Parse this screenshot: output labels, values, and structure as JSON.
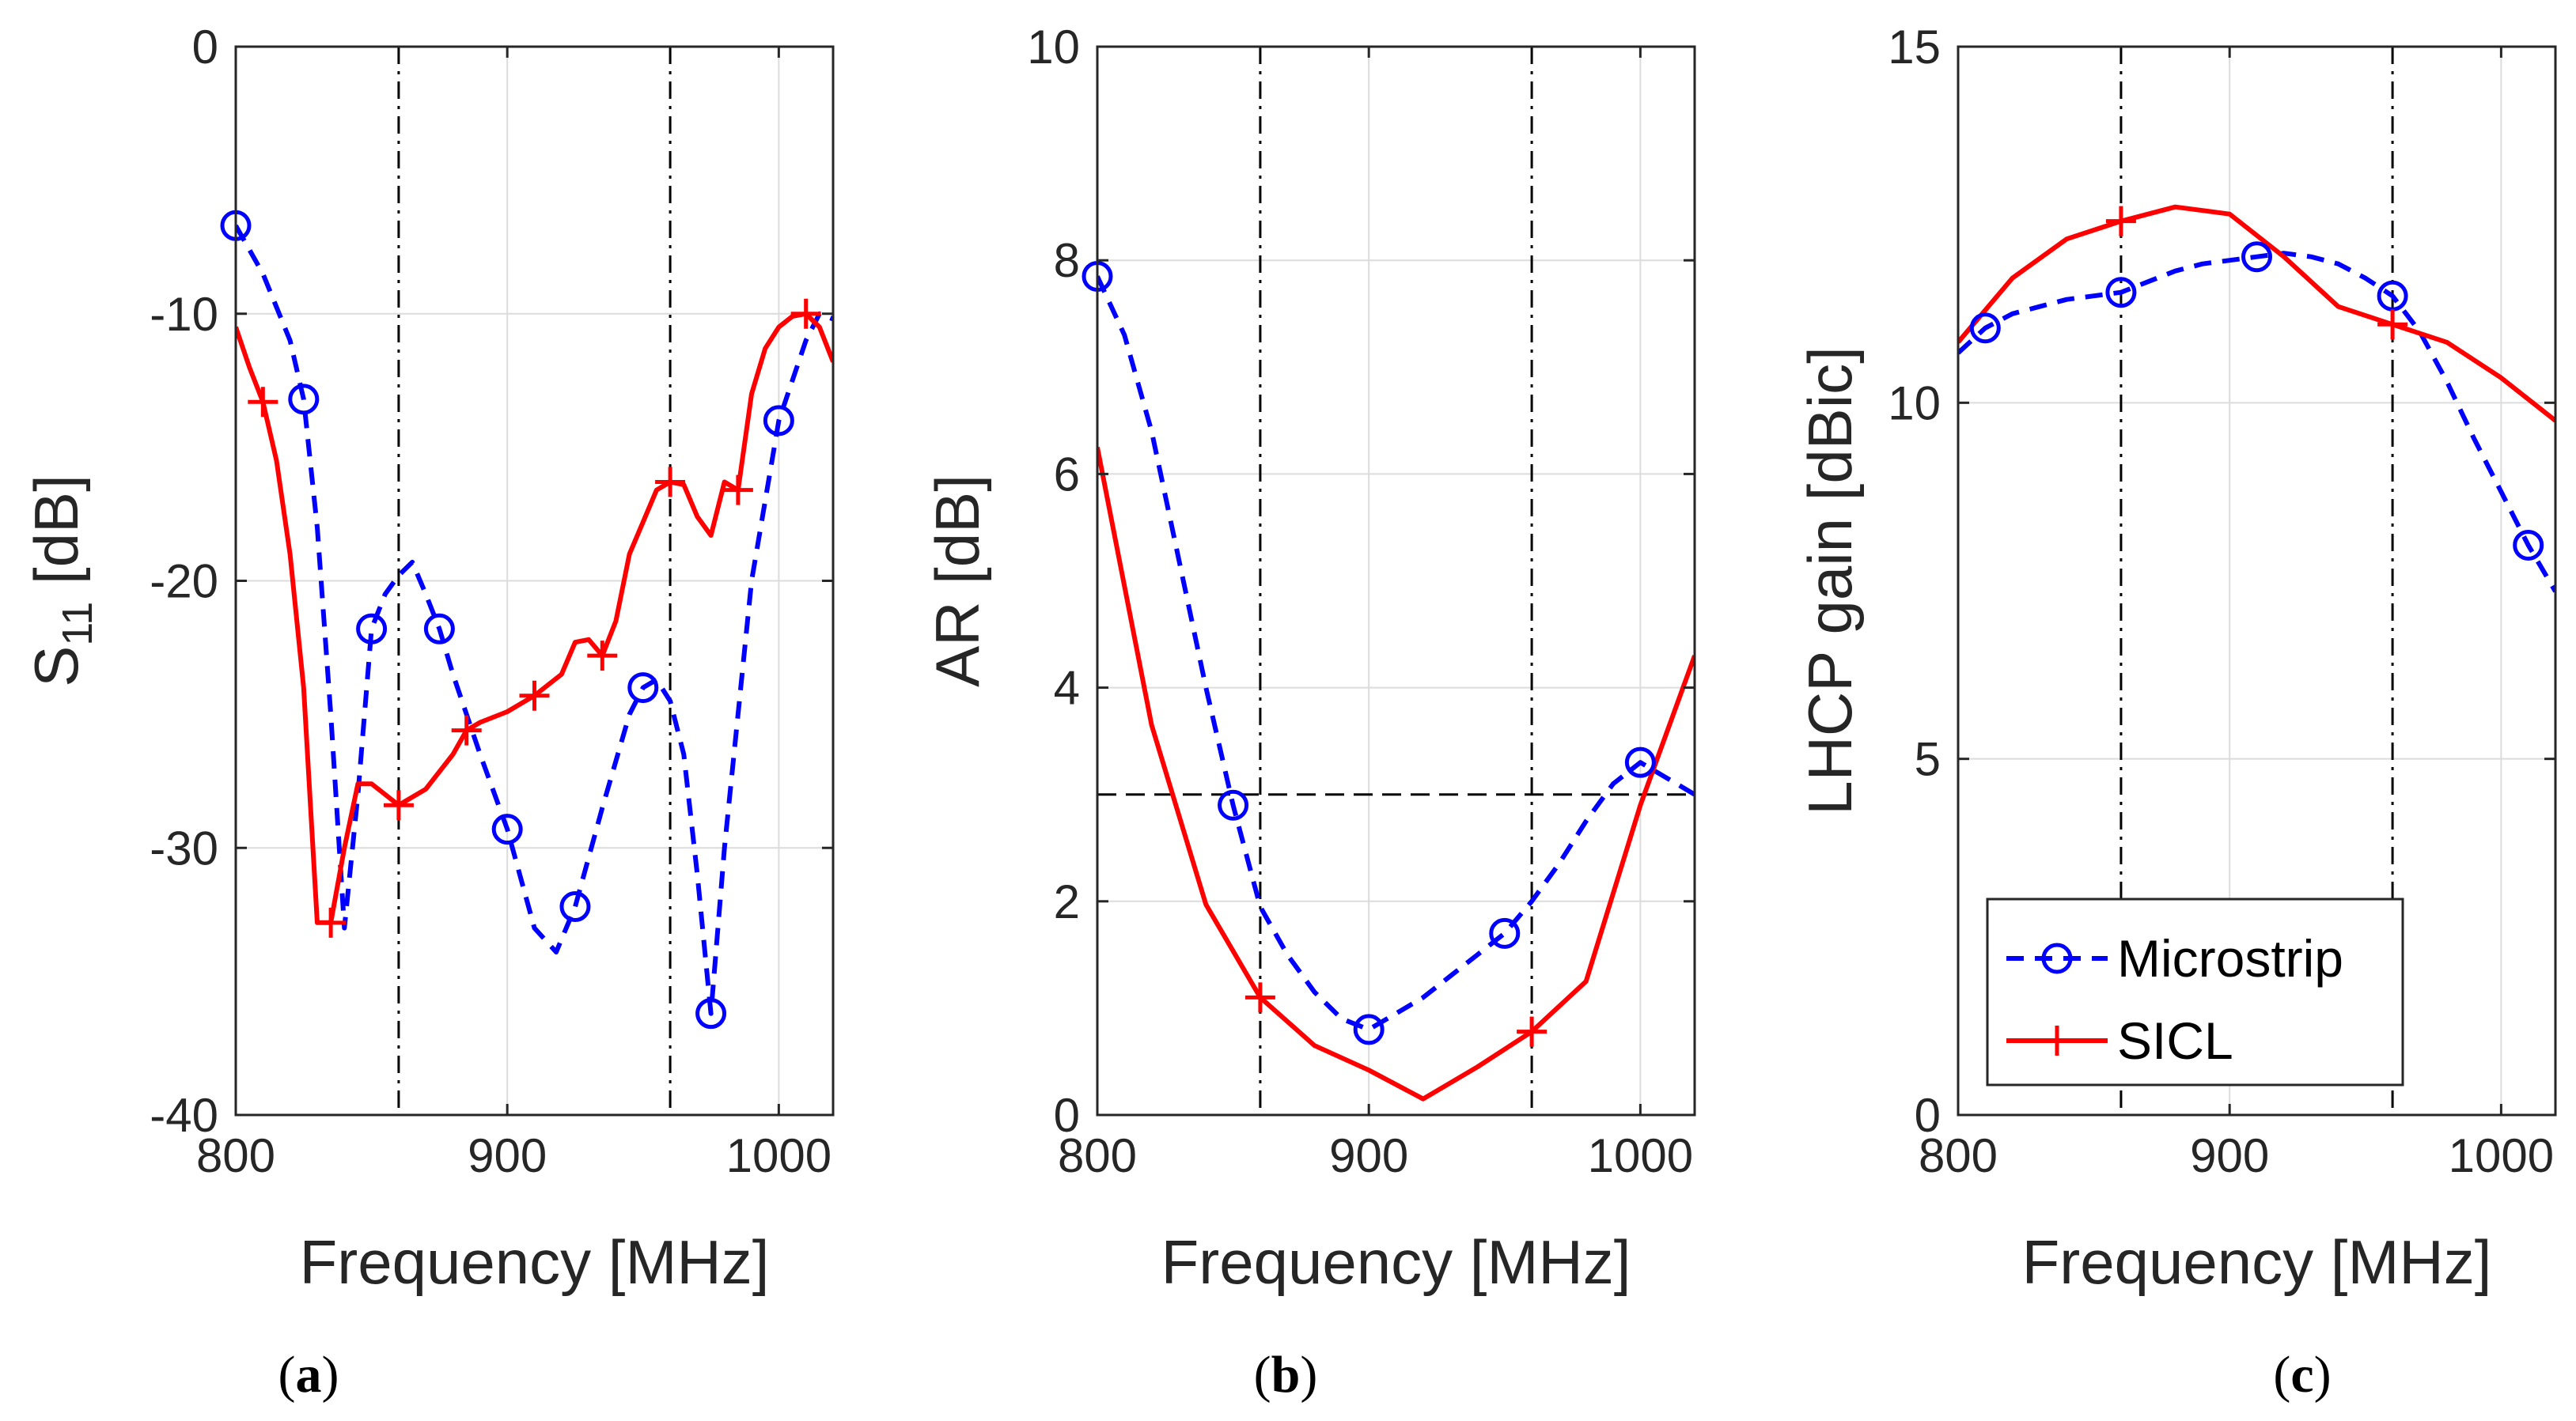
{
  "colors": {
    "microstrip": "#0000FF",
    "sicl": "#FF0000",
    "axis": "#262626",
    "grid": "#DCDCDC"
  },
  "legend": {
    "placement": "bottom-left",
    "panel": "c",
    "items": [
      "Microstrip",
      "SICL"
    ]
  },
  "chart_data": [
    {
      "type": "line",
      "panel_label": "a",
      "xlabel": "Frequency [MHz]",
      "ylabel_main": "S",
      "ylabel_sub": "11",
      "ylabel_rest": " [dB]",
      "xlim": [
        800,
        1020
      ],
      "ylim": [
        -40,
        0
      ],
      "xticks": [
        800,
        900,
        1000
      ],
      "yticks": [
        -40,
        -30,
        -20,
        -10,
        0
      ],
      "grid": true,
      "vlines": [
        860,
        960
      ],
      "series": [
        {
          "name": "Microstrip",
          "style": "dashed",
          "marker": "circle",
          "x": [
            800,
            810,
            820,
            825,
            830,
            835,
            840,
            845,
            850,
            855,
            860,
            865,
            870,
            875,
            880,
            890,
            900,
            910,
            918,
            925,
            935,
            945,
            950,
            955,
            960,
            965,
            970,
            975,
            980,
            990,
            1000,
            1010,
            1015,
            1020
          ],
          "y": [
            -6.7,
            -8.5,
            -11,
            -13.2,
            -18,
            -25,
            -33,
            -28,
            -21.8,
            -20.5,
            -19.8,
            -19.3,
            -20.5,
            -21.8,
            -23.5,
            -26.5,
            -29.3,
            -33,
            -33.9,
            -32.2,
            -28.5,
            -25,
            -24,
            -23.7,
            -24.5,
            -26.5,
            -31,
            -36.2,
            -30,
            -20,
            -14,
            -11,
            -10,
            -10.2
          ],
          "markers_x": [
            800,
            825,
            850,
            875,
            900,
            925,
            950,
            975,
            1000
          ],
          "markers_y": [
            -6.7,
            -13.2,
            -21.8,
            -21.8,
            -29.3,
            -32.2,
            -24,
            -36.2,
            -14
          ]
        },
        {
          "name": "SICL",
          "style": "solid",
          "marker": "plus",
          "x": [
            800,
            805,
            810,
            815,
            820,
            825,
            830,
            835,
            840,
            845,
            850,
            855,
            860,
            870,
            880,
            885,
            890,
            900,
            910,
            920,
            925,
            930,
            935,
            940,
            945,
            950,
            955,
            960,
            965,
            970,
            975,
            980,
            985,
            990,
            995,
            1000,
            1005,
            1010,
            1015,
            1020
          ],
          "y": [
            -10.5,
            -12,
            -13.3,
            -15.5,
            -19,
            -24,
            -32.8,
            -32.8,
            -30,
            -27.6,
            -27.6,
            -28,
            -28.4,
            -27.8,
            -26.5,
            -25.6,
            -25.3,
            -24.9,
            -24.3,
            -23.5,
            -22.3,
            -22.2,
            -22.8,
            -21.5,
            -19,
            -17.8,
            -16.6,
            -16.3,
            -16.4,
            -17.6,
            -18.3,
            -16.3,
            -16.6,
            -13,
            -11.3,
            -10.5,
            -10.1,
            -10,
            -10.5,
            -11.8
          ],
          "markers_x": [
            810,
            835,
            860,
            885,
            910,
            935,
            960,
            985,
            1010
          ],
          "markers_y": [
            -13.3,
            -32.8,
            -28.4,
            -25.6,
            -24.3,
            -22.8,
            -16.3,
            -16.6,
            -10
          ]
        }
      ]
    },
    {
      "type": "line",
      "panel_label": "b",
      "xlabel": "Frequency [MHz]",
      "ylabel": "AR [dB]",
      "xlim": [
        800,
        1020
      ],
      "ylim": [
        0,
        10
      ],
      "xticks": [
        800,
        900,
        1000
      ],
      "yticks": [
        0,
        2,
        4,
        6,
        8,
        10
      ],
      "grid": true,
      "vlines": [
        860,
        960
      ],
      "hline": 3,
      "series": [
        {
          "name": "Microstrip",
          "style": "dashed",
          "marker": "circle",
          "x": [
            800,
            810,
            820,
            830,
            840,
            850,
            860,
            870,
            880,
            890,
            900,
            910,
            920,
            930,
            940,
            950,
            960,
            970,
            980,
            990,
            1000,
            1010,
            1020
          ],
          "y": [
            7.85,
            7.3,
            6.4,
            5.2,
            4.0,
            2.9,
            1.95,
            1.5,
            1.15,
            0.9,
            0.8,
            0.95,
            1.1,
            1.3,
            1.5,
            1.7,
            2.0,
            2.35,
            2.75,
            3.1,
            3.3,
            3.15,
            3.0
          ],
          "markers_x": [
            800,
            850,
            900,
            950,
            1000
          ],
          "markers_y": [
            7.85,
            2.9,
            0.8,
            1.7,
            3.3
          ]
        },
        {
          "name": "SICL",
          "style": "solid",
          "marker": "plus",
          "x": [
            800,
            820,
            840,
            860,
            880,
            900,
            920,
            940,
            960,
            980,
            1000,
            1020
          ],
          "y": [
            6.25,
            3.65,
            1.97,
            1.1,
            0.65,
            0.42,
            0.15,
            0.45,
            0.78,
            1.25,
            2.9,
            4.3
          ],
          "markers_x": [
            860,
            960
          ],
          "markers_y": [
            1.1,
            0.78
          ]
        }
      ]
    },
    {
      "type": "line",
      "panel_label": "c",
      "xlabel": "Frequency [MHz]",
      "ylabel": "LHCP gain [dBic]",
      "xlim": [
        800,
        1020
      ],
      "ylim": [
        0,
        15
      ],
      "xticks": [
        800,
        900,
        1000
      ],
      "yticks": [
        0,
        5,
        10,
        15
      ],
      "grid": true,
      "vlines": [
        860,
        960
      ],
      "series": [
        {
          "name": "Microstrip",
          "style": "dashed",
          "marker": "circle",
          "x": [
            800,
            810,
            820,
            830,
            840,
            850,
            860,
            870,
            880,
            890,
            900,
            910,
            920,
            930,
            940,
            950,
            960,
            970,
            980,
            990,
            1000,
            1010,
            1020
          ],
          "y": [
            10.7,
            11.05,
            11.25,
            11.35,
            11.45,
            11.5,
            11.55,
            11.7,
            11.85,
            11.95,
            12.0,
            12.05,
            12.1,
            12.05,
            11.95,
            11.75,
            11.5,
            11.0,
            10.3,
            9.5,
            8.75,
            8.0,
            7.35
          ],
          "markers_x": [
            810,
            860,
            910,
            960,
            1010
          ],
          "markers_y": [
            11.05,
            11.55,
            12.05,
            11.5,
            8.0
          ]
        },
        {
          "name": "SICL",
          "style": "solid",
          "marker": "plus",
          "x": [
            800,
            820,
            840,
            860,
            880,
            900,
            920,
            940,
            960,
            980,
            1000,
            1020
          ],
          "y": [
            10.85,
            11.75,
            12.3,
            12.55,
            12.75,
            12.65,
            12.05,
            11.35,
            11.1,
            10.85,
            10.35,
            9.75
          ],
          "markers_x": [
            860,
            960
          ],
          "markers_y": [
            12.55,
            11.1
          ]
        }
      ]
    }
  ]
}
